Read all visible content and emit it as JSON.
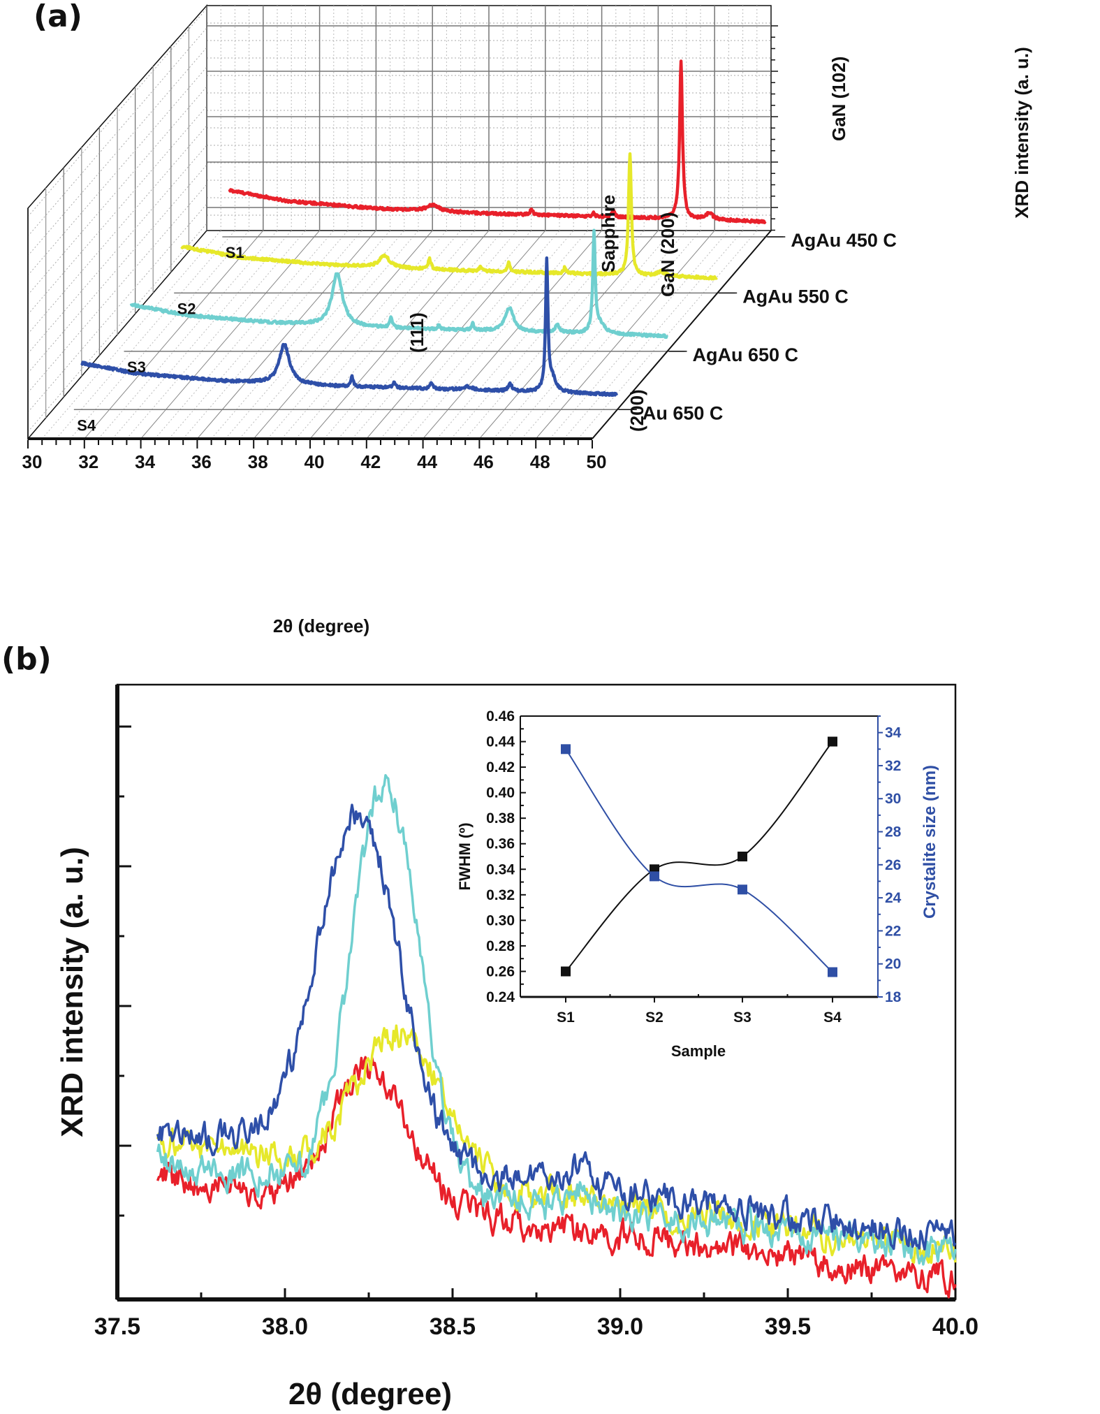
{
  "chart_data": [
    {
      "id": "a",
      "panel_label": "(a)",
      "type": "line",
      "style": "3d-waterfall",
      "title": "",
      "xlabel": "2θ (degree)",
      "zlabel": "XRD intensity (a. u.)",
      "xlim": [
        30,
        50
      ],
      "x_ticks": [
        30,
        32,
        34,
        36,
        38,
        40,
        42,
        44,
        46,
        48,
        50
      ],
      "grid": true,
      "series": [
        {
          "name": "AgAu 450 C",
          "tag": "S1",
          "color": "#e8202a",
          "baseline": [
            [
              31,
              0.62
            ],
            [
              33,
              0.42
            ],
            [
              36,
              0.28
            ],
            [
              40,
              0.18
            ],
            [
              44,
              0.12
            ],
            [
              48,
              0.06
            ],
            [
              50,
              0.02
            ]
          ],
          "peaks": [
            [
              38.2,
              0.12,
              0.25
            ],
            [
              41.7,
              0.1,
              0.06
            ],
            [
              43.9,
              0.06,
              0.05
            ],
            [
              44.6,
              0.15,
              0.05
            ],
            [
              47.0,
              3.0,
              0.06
            ],
            [
              48.0,
              0.12,
              0.15
            ]
          ]
        },
        {
          "name": "AgAu 550 C",
          "tag": "S2",
          "color": "#e6e82a",
          "baseline": [
            [
              31,
              0.62
            ],
            [
              33,
              0.42
            ],
            [
              36,
              0.28
            ],
            [
              40,
              0.18
            ],
            [
              44,
              0.12
            ],
            [
              48,
              0.06
            ],
            [
              50,
              0.02
            ]
          ],
          "peaks": [
            [
              38.2,
              0.22,
              0.22
            ],
            [
              39.8,
              0.2,
              0.06
            ],
            [
              41.6,
              0.08,
              0.05
            ],
            [
              42.6,
              0.18,
              0.05
            ],
            [
              44.6,
              0.12,
              0.05
            ],
            [
              46.9,
              2.3,
              0.06
            ],
            [
              48.0,
              0.08,
              0.15
            ]
          ]
        },
        {
          "name": "AgAu 650 C",
          "tag": "S3",
          "color": "#6fcfcf",
          "baseline": [
            [
              31,
              0.62
            ],
            [
              33,
              0.42
            ],
            [
              36,
              0.28
            ],
            [
              40,
              0.18
            ],
            [
              44,
              0.12
            ],
            [
              48,
              0.06
            ],
            [
              50,
              0.02
            ]
          ],
          "peaks": [
            [
              38.3,
              1.0,
              0.22
            ],
            [
              40.2,
              0.22,
              0.05
            ],
            [
              41.9,
              0.08,
              0.05
            ],
            [
              43.1,
              0.12,
              0.05
            ],
            [
              44.4,
              0.45,
              0.18
            ],
            [
              46.1,
              0.16,
              0.08
            ],
            [
              47.4,
              1.9,
              0.05
            ],
            [
              47.6,
              0.18,
              0.2
            ]
          ]
        },
        {
          "name": "Au 650 C",
          "tag": "S4",
          "color": "#2e4fa8",
          "baseline": [
            [
              31,
              0.62
            ],
            [
              33,
              0.42
            ],
            [
              36,
              0.28
            ],
            [
              40,
              0.18
            ],
            [
              44,
              0.12
            ],
            [
              48,
              0.06
            ],
            [
              50,
              0.02
            ]
          ],
          "peaks": [
            [
              38.2,
              0.75,
              0.22
            ],
            [
              40.6,
              0.18,
              0.05
            ],
            [
              42.1,
              0.1,
              0.05
            ],
            [
              43.4,
              0.13,
              0.05
            ],
            [
              44.7,
              0.06,
              0.2
            ],
            [
              46.2,
              0.13,
              0.08
            ],
            [
              47.5,
              2.45,
              0.05
            ],
            [
              47.7,
              0.25,
              0.15
            ]
          ]
        }
      ],
      "annotations": [
        {
          "text": "(111)",
          "x": 38.3,
          "series": "AgAu 650 C"
        },
        {
          "text": "(200)",
          "x": 44.4,
          "series": "AgAu 650 C"
        },
        {
          "text": "Sapphire",
          "x": 41.7,
          "series": "AgAu 450 C"
        },
        {
          "text": "GaN (200)",
          "x": 43.9,
          "series": "AgAu 450 C"
        },
        {
          "text": "GaN (102)",
          "x": 47.0,
          "series": "AgAu 450 C"
        }
      ]
    },
    {
      "id": "b",
      "panel_label": "(b)",
      "type": "line",
      "title": "",
      "xlabel": "2θ (degree)",
      "ylabel": "XRD intensity (a. u.)",
      "xlim": [
        37.5,
        40.0
      ],
      "ylim": [
        0,
        9
      ],
      "x_ticks": [
        37.5,
        38.0,
        38.5,
        39.0,
        39.5,
        40.0
      ],
      "x_tick_labels": [
        "37.5",
        "38.0",
        "38.5",
        "39.0",
        "39.5",
        "40.0"
      ],
      "grid": false,
      "series": [
        {
          "name": "AgAu 450 C",
          "color": "#e8202a",
          "peak_x": 38.26,
          "peak_height": 2.0,
          "baseline_start": 1.8,
          "baseline_end": 0.3,
          "width": 0.16
        },
        {
          "name": "AgAu 550 C",
          "color": "#e6e82a",
          "peak_x": 38.34,
          "peak_height": 2.1,
          "baseline_start": 2.3,
          "baseline_end": 0.7,
          "width": 0.18
        },
        {
          "name": "AgAu 650 C",
          "color": "#6fcfcf",
          "peak_x": 38.3,
          "peak_height": 5.9,
          "baseline_start": 2.0,
          "baseline_end": 0.7,
          "width": 0.14
        },
        {
          "name": "Au 650 C",
          "color": "#2e4fa8",
          "peak_x": 38.22,
          "peak_height": 5.0,
          "baseline_start": 2.5,
          "baseline_end": 0.9,
          "width": 0.17
        }
      ]
    },
    {
      "id": "b-inset",
      "type": "line",
      "title": "",
      "xlabel": "Sample",
      "categories": [
        "S1",
        "S2",
        "S3",
        "S4"
      ],
      "ylabel": "FWHM (º)",
      "ylim": [
        0.24,
        0.46
      ],
      "y_ticks": [
        0.24,
        0.26,
        0.28,
        0.3,
        0.32,
        0.34,
        0.36,
        0.38,
        0.4,
        0.42,
        0.44,
        0.46
      ],
      "y_tick_labels": [
        "0.24",
        "0.26",
        "0.28",
        "0.30",
        "0.32",
        "0.34",
        "0.36",
        "0.38",
        "0.40",
        "0.42",
        "0.44",
        "0.46"
      ],
      "y2label": "Crystalite size (nm)",
      "y2lim": [
        18,
        35
      ],
      "y2_ticks": [
        18,
        20,
        22,
        24,
        26,
        28,
        30,
        32,
        34
      ],
      "series": [
        {
          "name": "FWHM",
          "axis": "left",
          "color": "#111111",
          "values": [
            0.26,
            0.34,
            0.35,
            0.44
          ]
        },
        {
          "name": "Crystalite size",
          "axis": "right",
          "color": "#2f4fa5",
          "values": [
            33.0,
            25.3,
            24.5,
            19.5
          ]
        }
      ]
    }
  ]
}
